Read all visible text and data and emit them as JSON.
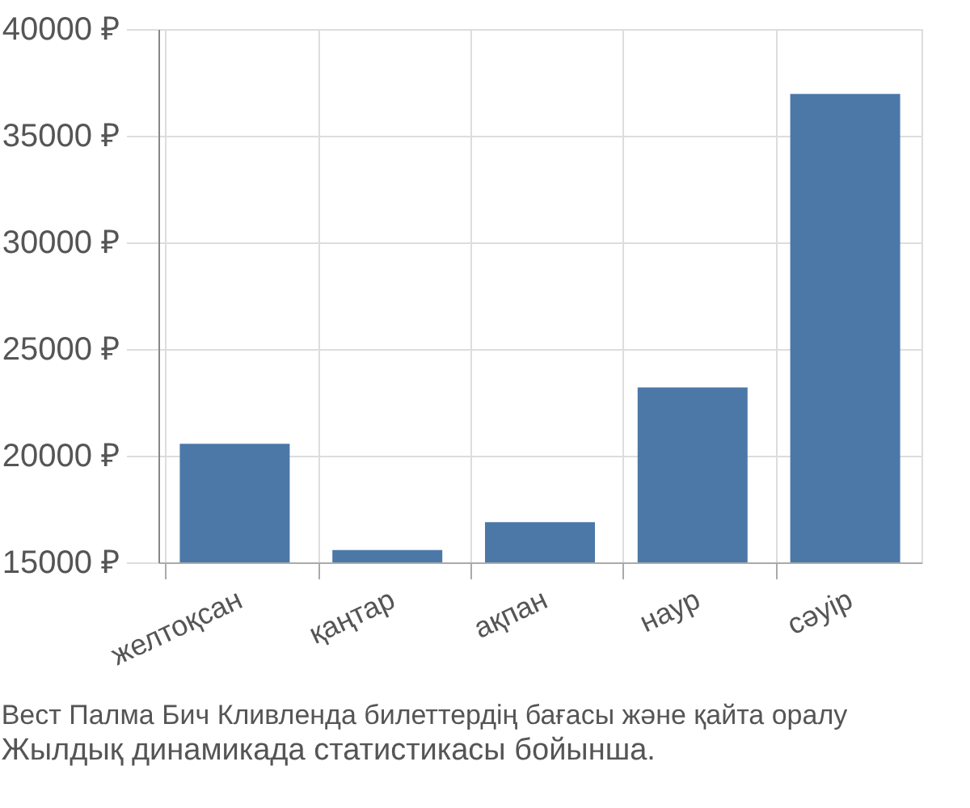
{
  "chart_data": {
    "type": "bar",
    "title": "Вест Палма Бич Кливленда билеттердің бағасы және қайта оралу",
    "subtitle": "Жылдық динамикада статистикасы бойынша.",
    "categories": [
      "желтоқсан",
      "қаңтар",
      "ақпан",
      "наур",
      "сәуір"
    ],
    "values": [
      20560,
      15580,
      16880,
      23200,
      36960
    ],
    "color": "#4c78a8",
    "ylim": [
      15000,
      40000
    ],
    "yticks": [
      {
        "value": 15000,
        "label": "15000 ₽"
      },
      {
        "value": 20000,
        "label": "20000 ₽"
      },
      {
        "value": 25000,
        "label": "25000 ₽"
      },
      {
        "value": 30000,
        "label": "30000 ₽"
      },
      {
        "value": 35000,
        "label": "35000 ₽"
      },
      {
        "value": 40000,
        "label": "40000 ₽"
      }
    ],
    "grid": true
  }
}
